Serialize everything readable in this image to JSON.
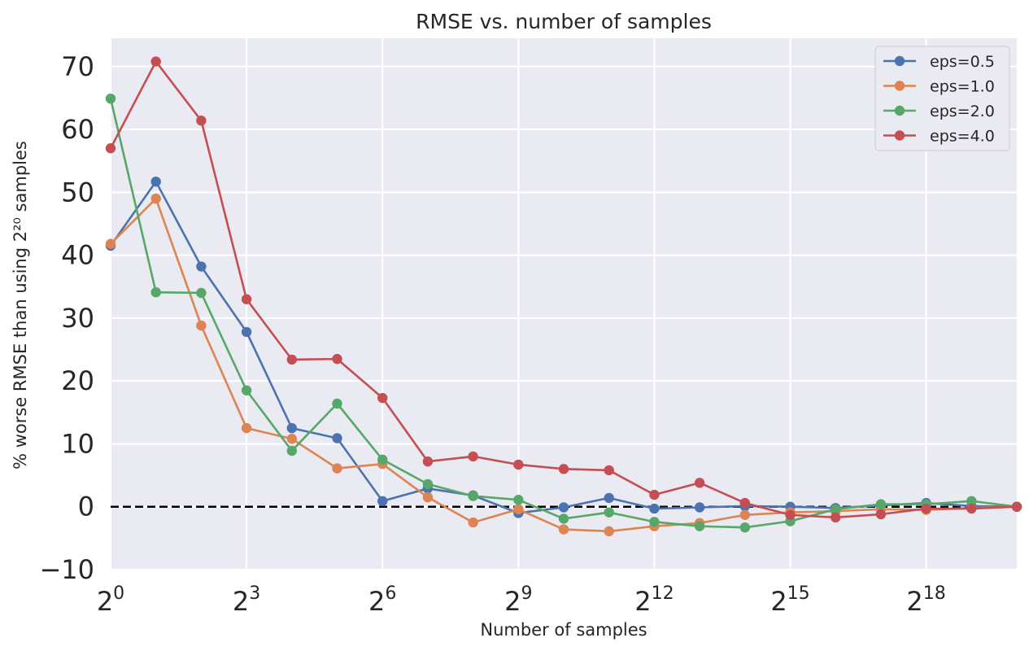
{
  "chart_data": {
    "type": "line",
    "title": "RMSE vs. number of samples",
    "xlabel": "Number of samples",
    "ylabel": "% worse RMSE than using 2²⁰ samples",
    "x_scale": "log2",
    "x": [
      0,
      1,
      2,
      3,
      4,
      5,
      6,
      7,
      8,
      9,
      10,
      11,
      12,
      13,
      14,
      15,
      16,
      17,
      18,
      19,
      20
    ],
    "xlim": [
      0,
      20
    ],
    "ylim": [
      -10,
      74.5
    ],
    "x_ticks": [
      {
        "value": 0,
        "base": "2",
        "exp": "0"
      },
      {
        "value": 3,
        "base": "2",
        "exp": "3"
      },
      {
        "value": 6,
        "base": "2",
        "exp": "6"
      },
      {
        "value": 9,
        "base": "2",
        "exp": "9"
      },
      {
        "value": 12,
        "base": "2",
        "exp": "12"
      },
      {
        "value": 15,
        "base": "2",
        "exp": "15"
      },
      {
        "value": 18,
        "base": "2",
        "exp": "18"
      }
    ],
    "y_ticks": [
      {
        "value": -10,
        "label": "−10"
      },
      {
        "value": 0,
        "label": "0"
      },
      {
        "value": 10,
        "label": "10"
      },
      {
        "value": 20,
        "label": "20"
      },
      {
        "value": 30,
        "label": "30"
      },
      {
        "value": 40,
        "label": "40"
      },
      {
        "value": 50,
        "label": "50"
      },
      {
        "value": 60,
        "label": "60"
      },
      {
        "value": 70,
        "label": "70"
      }
    ],
    "reference_line": {
      "y": 0,
      "style": "dashed",
      "color": "#000000"
    },
    "grid": true,
    "legend_position": "top-right",
    "series": [
      {
        "name": "eps=0.5",
        "color": "#4c72b0",
        "values": [
          41.5,
          51.7,
          38.2,
          27.8,
          12.5,
          10.9,
          0.9,
          2.9,
          1.8,
          -1.0,
          -0.1,
          1.4,
          -0.3,
          -0.1,
          0.1,
          0.0,
          -0.2,
          0.2,
          0.6,
          0.1,
          0.0
        ]
      },
      {
        "name": "eps=1.0",
        "color": "#dd8452",
        "values": [
          41.8,
          49.0,
          28.8,
          12.5,
          10.8,
          6.1,
          6.8,
          1.5,
          -2.5,
          -0.4,
          -3.6,
          -3.9,
          -3.1,
          -2.6,
          -1.3,
          -0.9,
          -0.7,
          -0.4,
          -0.5,
          -0.2,
          0.0
        ]
      },
      {
        "name": "eps=2.0",
        "color": "#55a868",
        "values": [
          64.9,
          34.1,
          34.0,
          18.5,
          8.9,
          16.4,
          7.5,
          3.6,
          1.7,
          1.1,
          -1.9,
          -0.9,
          -2.4,
          -3.1,
          -3.3,
          -2.3,
          -0.4,
          0.4,
          0.4,
          0.9,
          0.0
        ]
      },
      {
        "name": "eps=4.0",
        "color": "#c44e52",
        "values": [
          57.0,
          70.8,
          61.4,
          33.0,
          23.4,
          23.5,
          17.3,
          7.2,
          8.0,
          6.7,
          6.0,
          5.8,
          1.9,
          3.8,
          0.6,
          -1.3,
          -1.7,
          -1.2,
          -0.3,
          -0.3,
          0.0
        ]
      }
    ]
  }
}
